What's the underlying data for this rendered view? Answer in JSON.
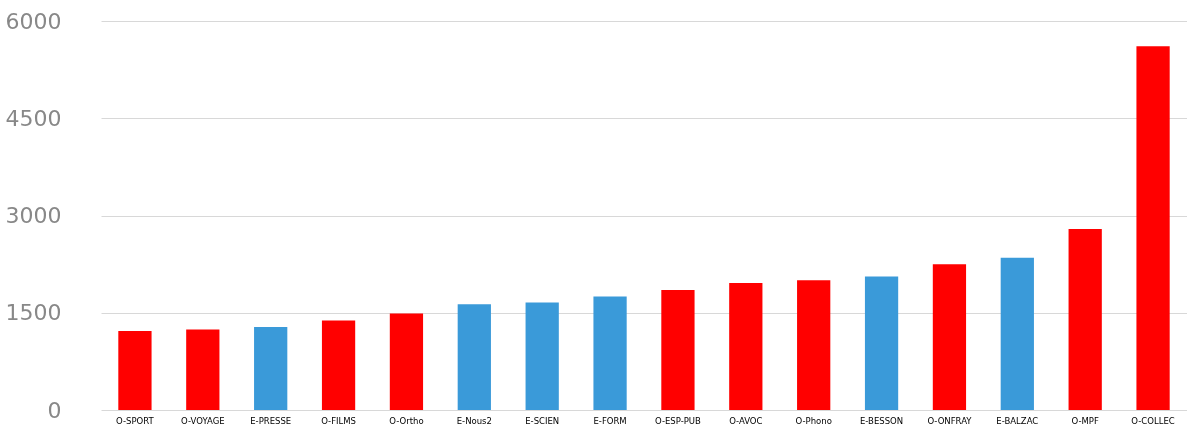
{
  "chart_data": {
    "type": "bar",
    "categories": [
      "O-SPORT",
      "O-VOYAGE",
      "E-PRESSE",
      "O-FILMS",
      "O-Ortho",
      "E-Nous2",
      "E-SCIEN",
      "E-FORM",
      "O-ESP-PUB",
      "O-AVOC",
      "O-Phono",
      "E-BESSON",
      "O-ONFRAY",
      "E-BALZAC",
      "O-MPF",
      "O-COLLEC"
    ],
    "values": [
      1220,
      1240,
      1280,
      1380,
      1490,
      1630,
      1660,
      1750,
      1850,
      1960,
      2000,
      2060,
      2250,
      2350,
      2790,
      5610
    ],
    "colors": [
      "#ff0000",
      "#ff0000",
      "#3a9ad9",
      "#ff0000",
      "#ff0000",
      "#3a9ad9",
      "#3a9ad9",
      "#3a9ad9",
      "#ff0000",
      "#ff0000",
      "#ff0000",
      "#3a9ad9",
      "#ff0000",
      "#3a9ad9",
      "#ff0000",
      "#ff0000"
    ],
    "ylim": [
      0,
      6000
    ],
    "yticks": [
      0,
      1500,
      3000,
      4500,
      6000
    ],
    "grid": "y"
  }
}
